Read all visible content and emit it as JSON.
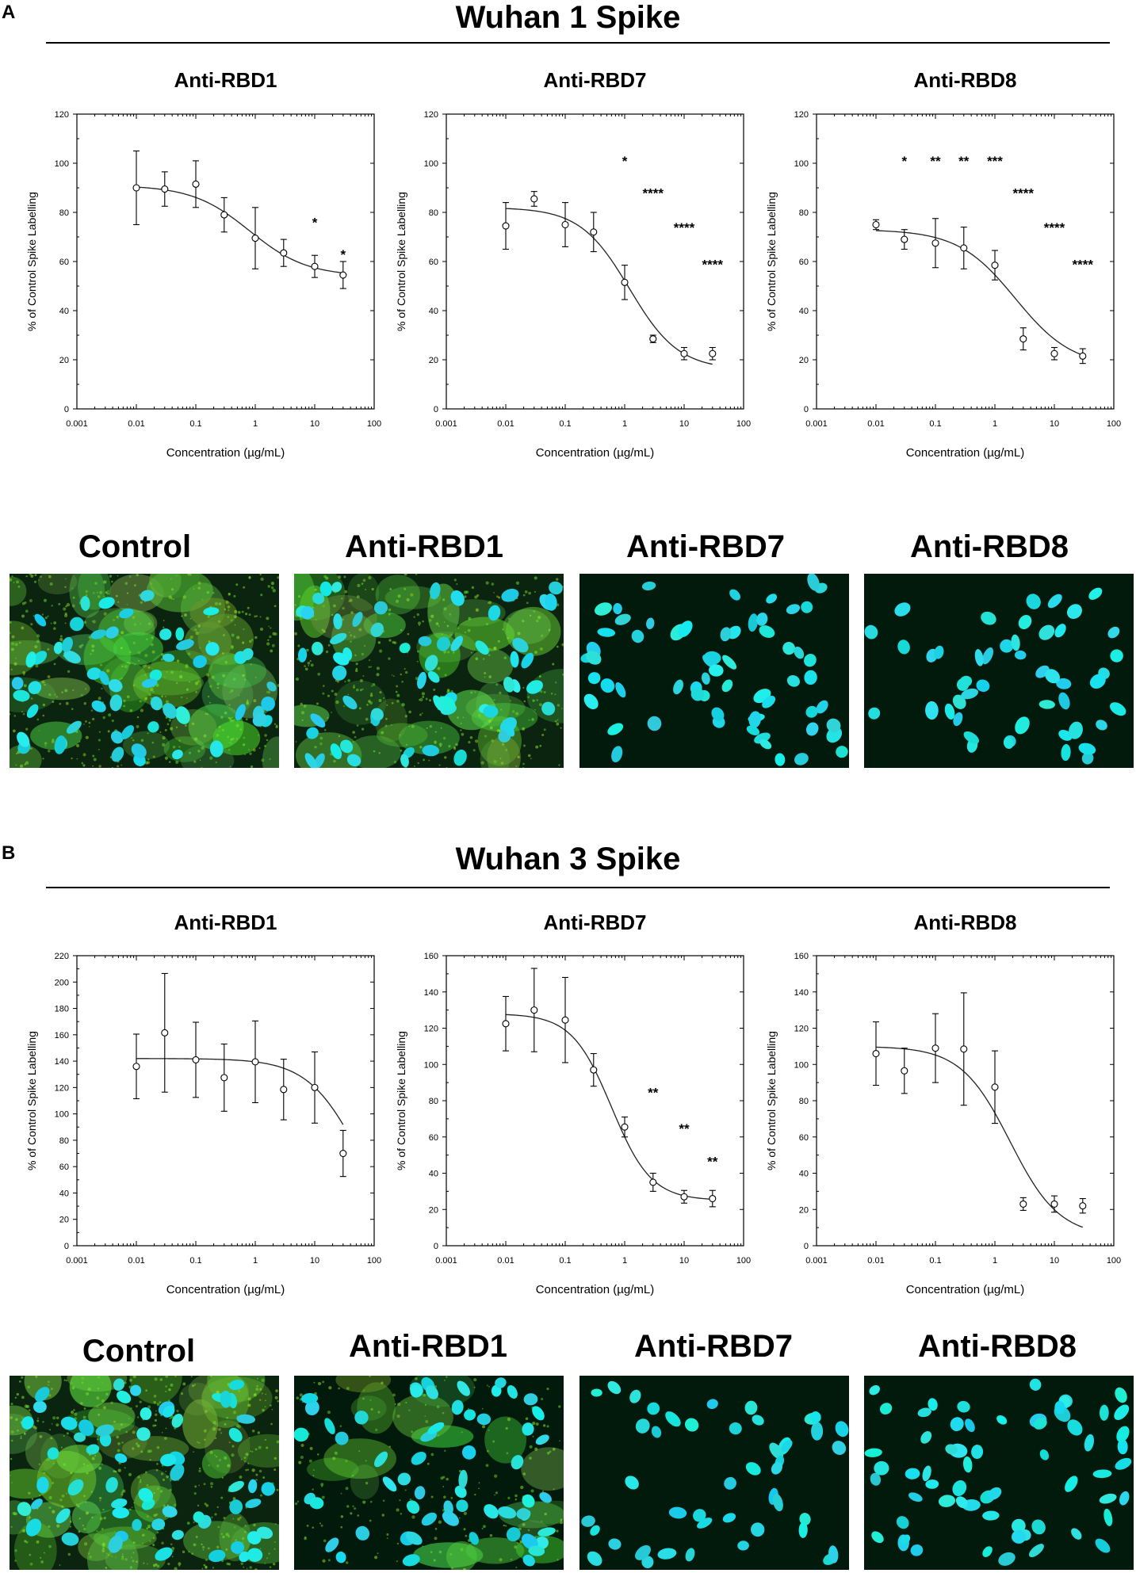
{
  "panels": [
    {
      "letter": "A",
      "title": "Wuhan 1 Spike",
      "charts": [
        {
          "title": "Anti-RBD1",
          "xlabel": "Concentration (µg/mL)",
          "ylabel": "% of Control Spike Labelling",
          "ylim": [
            0,
            120
          ],
          "yticks": [
            "0",
            "20",
            "40",
            "60",
            "80",
            "100",
            "120"
          ],
          "yvals": [
            0,
            20,
            40,
            60,
            80,
            100,
            120
          ],
          "xticks": [
            "0.001",
            "0.01",
            "0.1",
            "1",
            "10",
            "100"
          ],
          "points": [
            [
              0.01,
              90,
              15
            ],
            [
              0.03,
              89.5,
              7
            ],
            [
              0.1,
              91.5,
              9.5
            ],
            [
              0.3,
              79,
              7
            ],
            [
              1,
              69.5,
              12.5
            ],
            [
              3,
              63.5,
              5.5
            ],
            [
              10,
              58,
              4.5
            ],
            [
              30,
              54.5,
              5.5
            ]
          ],
          "curve": {
            "top": 91,
            "bottom": 54,
            "ic50": 0.8,
            "hill": 0.9
          },
          "stars": [
            {
              "text": "*",
              "x": 10,
              "y": 74
            },
            {
              "text": "*",
              "x": 30,
              "y": 61
            }
          ]
        },
        {
          "title": "Anti-RBD7",
          "xlabel": "Concentration (µg/mL)",
          "ylabel": "% of Control Spike Labelling",
          "ylim": [
            0,
            120
          ],
          "yticks": [
            "0",
            "20",
            "40",
            "60",
            "80",
            "100",
            "120"
          ],
          "yvals": [
            0,
            20,
            40,
            60,
            80,
            100,
            120
          ],
          "xticks": [
            "0.001",
            "0.01",
            "0.1",
            "1",
            "10",
            "100"
          ],
          "points": [
            [
              0.01,
              74.5,
              9.5
            ],
            [
              0.03,
              85.5,
              3
            ],
            [
              0.1,
              75,
              9
            ],
            [
              0.3,
              72,
              8
            ],
            [
              1,
              51.5,
              7
            ],
            [
              3,
              28.5,
              1.5
            ],
            [
              10,
              22.5,
              2.5
            ],
            [
              30,
              22.5,
              2.5
            ]
          ],
          "curve": {
            "top": 82,
            "bottom": 16,
            "ic50": 1.2,
            "hill": 1.05
          },
          "stars": [
            {
              "text": "*",
              "x": 1,
              "y": 99
            },
            {
              "text": "****",
              "x": 3,
              "y": 86
            },
            {
              "text": "****",
              "x": 10,
              "y": 72
            },
            {
              "text": "****",
              "x": 30,
              "y": 57
            }
          ]
        },
        {
          "title": "Anti-RBD8",
          "xlabel": "Concentration (µg/mL)",
          "ylabel": "% of Control Spike Labelling",
          "ylim": [
            0,
            120
          ],
          "yticks": [
            "0",
            "20",
            "40",
            "60",
            "80",
            "100",
            "120"
          ],
          "yvals": [
            0,
            20,
            40,
            60,
            80,
            100,
            120
          ],
          "xticks": [
            "0.001",
            "0.01",
            "0.1",
            "1",
            "10",
            "100"
          ],
          "points": [
            [
              0.01,
              75,
              2
            ],
            [
              0.03,
              69,
              4
            ],
            [
              0.1,
              67.5,
              10
            ],
            [
              0.3,
              65.5,
              8.5
            ],
            [
              1,
              58.5,
              6
            ],
            [
              3,
              28.5,
              4.5
            ],
            [
              10,
              22.5,
              2.5
            ],
            [
              30,
              21.5,
              3
            ]
          ],
          "curve": {
            "top": 73,
            "bottom": 17,
            "ic50": 2.2,
            "hill": 0.9
          },
          "stars": [
            {
              "text": "*",
              "x": 0.03,
              "y": 99
            },
            {
              "text": "**",
              "x": 0.1,
              "y": 99
            },
            {
              "text": "**",
              "x": 0.3,
              "y": 99
            },
            {
              "text": "***",
              "x": 1,
              "y": 99
            },
            {
              "text": "****",
              "x": 3,
              "y": 86
            },
            {
              "text": "****",
              "x": 10,
              "y": 72
            },
            {
              "text": "****",
              "x": 30,
              "y": 57
            }
          ]
        }
      ],
      "images": [
        "Control",
        "Anti-RBD1",
        "Anti-RBD7",
        "Anti-RBD8"
      ]
    },
    {
      "letter": "B",
      "title": "Wuhan 3 Spike",
      "charts": [
        {
          "title": "Anti-RBD1",
          "xlabel": "Concentration (µg/mL)",
          "ylabel": "% of Control Spike Labelling",
          "ylim": [
            0,
            220
          ],
          "yticks": [
            "0",
            "20",
            "40",
            "60",
            "80",
            "100",
            "120",
            "140",
            "160",
            "180",
            "200",
            "220"
          ],
          "yvals": [
            0,
            20,
            40,
            60,
            80,
            100,
            120,
            140,
            160,
            180,
            200,
            220
          ],
          "xticks": [
            "0.001",
            "0.01",
            "0.1",
            "1",
            "10",
            "100"
          ],
          "points": [
            [
              0.01,
              136,
              24.5
            ],
            [
              0.03,
              161.5,
              45
            ],
            [
              0.1,
              141,
              28.5
            ],
            [
              0.3,
              127.5,
              25.5
            ],
            [
              1,
              139.5,
              31
            ],
            [
              3,
              118.5,
              23
            ],
            [
              10,
              120,
              27
            ],
            [
              30,
              70,
              17.5
            ]
          ],
          "curve": {
            "top": 142,
            "bottom": 0,
            "ic50": 55,
            "hill": 1.0
          },
          "stars": []
        },
        {
          "title": "Anti-RBD7",
          "xlabel": "Concentration (µg/mL)",
          "ylabel": "% of Control Spike Labelling",
          "ylim": [
            0,
            160
          ],
          "yticks": [
            "0",
            "20",
            "40",
            "60",
            "80",
            "100",
            "120",
            "140",
            "160"
          ],
          "yvals": [
            0,
            20,
            40,
            60,
            80,
            100,
            120,
            140,
            160
          ],
          "xticks": [
            "0.001",
            "0.01",
            "0.1",
            "1",
            "10",
            "100"
          ],
          "points": [
            [
              0.01,
              122.5,
              15
            ],
            [
              0.03,
              130,
              23
            ],
            [
              0.1,
              124.5,
              23.5
            ],
            [
              0.3,
              97,
              9
            ],
            [
              1,
              65.5,
              5.5
            ],
            [
              3,
              35,
              5
            ],
            [
              10,
              27,
              3.5
            ],
            [
              30,
              26,
              4.5
            ]
          ],
          "curve": {
            "top": 128,
            "bottom": 25,
            "ic50": 0.6,
            "hill": 1.3
          },
          "stars": [
            {
              "text": "**",
              "x": 3,
              "y": 82
            },
            {
              "text": "**",
              "x": 10,
              "y": 62
            },
            {
              "text": "**",
              "x": 30,
              "y": 44
            }
          ]
        },
        {
          "title": "Anti-RBD8",
          "xlabel": "Concentration (µg/mL)",
          "ylabel": "% of Control Spike Labelling",
          "ylim": [
            0,
            160
          ],
          "yticks": [
            "0",
            "20",
            "40",
            "60",
            "80",
            "100",
            "120",
            "140",
            "160"
          ],
          "yvals": [
            0,
            20,
            40,
            60,
            80,
            100,
            120,
            140,
            160
          ],
          "xticks": [
            "0.001",
            "0.01",
            "0.1",
            "1",
            "10",
            "100"
          ],
          "points": [
            [
              0.01,
              106,
              17.5
            ],
            [
              0.03,
              96.5,
              12.5
            ],
            [
              0.1,
              109,
              19
            ],
            [
              0.3,
              108.5,
              31
            ],
            [
              1,
              87.5,
              20
            ],
            [
              3,
              23,
              3.5
            ],
            [
              10,
              23,
              4.5
            ],
            [
              30,
              22,
              4
            ]
          ],
          "curve": {
            "top": 110,
            "bottom": 5,
            "ic50": 1.8,
            "hill": 1.05
          },
          "stars": []
        }
      ],
      "images": [
        "Control",
        "Anti-RBD1",
        "Anti-RBD7",
        "Anti-RBD8"
      ]
    }
  ],
  "chart_data": [
    {
      "type": "scatter",
      "title": "Anti-RBD1",
      "group": "Wuhan 1 Spike",
      "xlabel": "Concentration (µg/mL)",
      "ylabel": "% of Control Spike Labelling",
      "xscale": "log",
      "xlim": [
        0.001,
        100
      ],
      "ylim": [
        0,
        120
      ],
      "x": [
        0.01,
        0.03,
        0.1,
        0.3,
        1,
        3,
        10,
        30
      ],
      "y": [
        90,
        89.5,
        91.5,
        79,
        69.5,
        63.5,
        58,
        54.5
      ]
    },
    {
      "type": "scatter",
      "title": "Anti-RBD7",
      "group": "Wuhan 1 Spike",
      "xlabel": "Concentration (µg/mL)",
      "ylabel": "% of Control Spike Labelling",
      "xscale": "log",
      "xlim": [
        0.001,
        100
      ],
      "ylim": [
        0,
        120
      ],
      "x": [
        0.01,
        0.03,
        0.1,
        0.3,
        1,
        3,
        10,
        30
      ],
      "y": [
        74.5,
        85.5,
        75,
        72,
        51.5,
        28.5,
        22.5,
        22.5
      ]
    },
    {
      "type": "scatter",
      "title": "Anti-RBD8",
      "group": "Wuhan 1 Spike",
      "xlabel": "Concentration (µg/mL)",
      "ylabel": "% of Control Spike Labelling",
      "xscale": "log",
      "xlim": [
        0.001,
        100
      ],
      "ylim": [
        0,
        120
      ],
      "x": [
        0.01,
        0.03,
        0.1,
        0.3,
        1,
        3,
        10,
        30
      ],
      "y": [
        75,
        69,
        67.5,
        65.5,
        58.5,
        28.5,
        22.5,
        21.5
      ]
    },
    {
      "type": "scatter",
      "title": "Anti-RBD1",
      "group": "Wuhan 3 Spike",
      "xlabel": "Concentration (µg/mL)",
      "ylabel": "% of Control Spike Labelling",
      "xscale": "log",
      "xlim": [
        0.001,
        100
      ],
      "ylim": [
        0,
        220
      ],
      "x": [
        0.01,
        0.03,
        0.1,
        0.3,
        1,
        3,
        10,
        30
      ],
      "y": [
        136,
        161.5,
        141,
        127.5,
        139.5,
        118.5,
        120,
        70
      ]
    },
    {
      "type": "scatter",
      "title": "Anti-RBD7",
      "group": "Wuhan 3 Spike",
      "xlabel": "Concentration (µg/mL)",
      "ylabel": "% of Control Spike Labelling",
      "xscale": "log",
      "xlim": [
        0.001,
        100
      ],
      "ylim": [
        0,
        160
      ],
      "x": [
        0.01,
        0.03,
        0.1,
        0.3,
        1,
        3,
        10,
        30
      ],
      "y": [
        122.5,
        130,
        124.5,
        97,
        65.5,
        35,
        27,
        26
      ]
    },
    {
      "type": "scatter",
      "title": "Anti-RBD8",
      "group": "Wuhan 3 Spike",
      "xlabel": "Concentration (µg/mL)",
      "ylabel": "% of Control Spike Labelling",
      "xscale": "log",
      "xlim": [
        0.001,
        100
      ],
      "ylim": [
        0,
        160
      ],
      "x": [
        0.01,
        0.03,
        0.1,
        0.3,
        1,
        3,
        10,
        30
      ],
      "y": [
        106,
        96.5,
        109,
        108.5,
        87.5,
        23,
        23,
        22
      ]
    }
  ]
}
